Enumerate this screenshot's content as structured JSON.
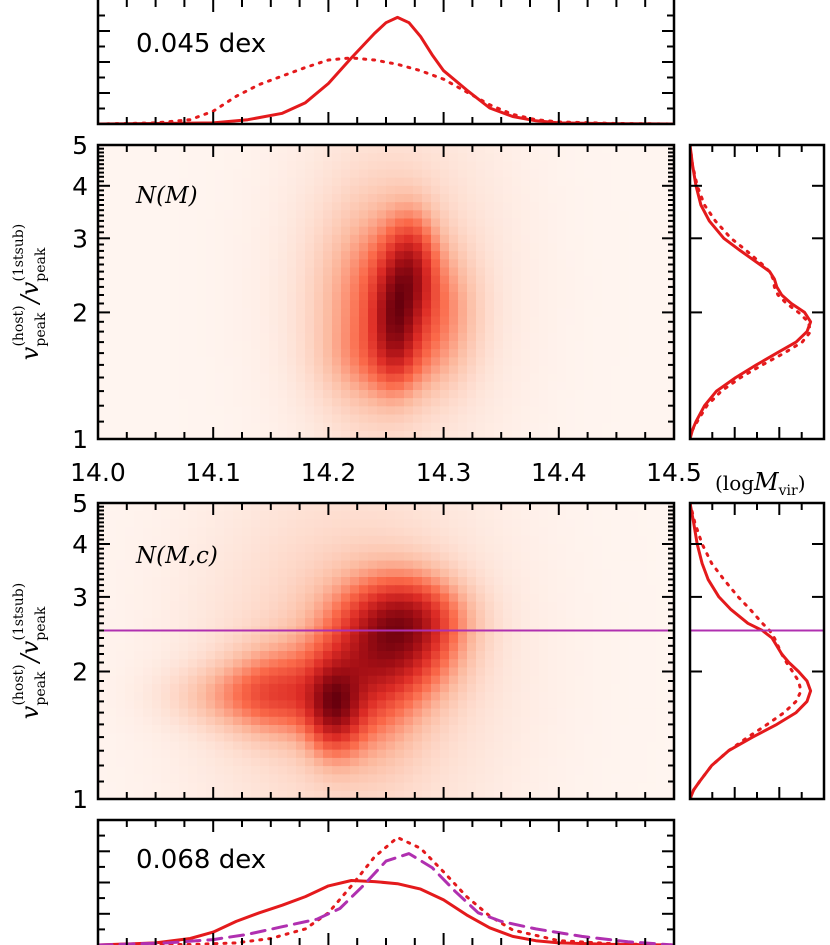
{
  "chart_data": [
    {
      "id": "top_hist",
      "type": "line",
      "annotation": "0.045 dex",
      "x_range": [
        14.0,
        14.5
      ],
      "series": [
        {
          "style": "solid",
          "color": "#e41a1c",
          "x": [
            14.0,
            14.05,
            14.1,
            14.13,
            14.16,
            14.18,
            14.2,
            14.22,
            14.24,
            14.25,
            14.26,
            14.27,
            14.28,
            14.29,
            14.3,
            14.32,
            14.34,
            14.36,
            14.38,
            14.4,
            14.45,
            14.5
          ],
          "y": [
            0.0,
            0.005,
            0.01,
            0.04,
            0.1,
            0.2,
            0.38,
            0.62,
            0.85,
            0.95,
            1.0,
            0.95,
            0.82,
            0.65,
            0.5,
            0.32,
            0.15,
            0.07,
            0.03,
            0.01,
            0.003,
            0.0
          ]
        },
        {
          "style": "dotted",
          "color": "#e41a1c",
          "x": [
            14.0,
            14.05,
            14.08,
            14.1,
            14.12,
            14.14,
            14.16,
            14.18,
            14.2,
            14.22,
            14.24,
            14.26,
            14.28,
            14.3,
            14.32,
            14.34,
            14.36,
            14.38,
            14.4,
            14.45,
            14.5
          ],
          "y": [
            0.0,
            0.01,
            0.04,
            0.12,
            0.26,
            0.37,
            0.45,
            0.53,
            0.6,
            0.62,
            0.6,
            0.56,
            0.5,
            0.42,
            0.3,
            0.18,
            0.09,
            0.04,
            0.02,
            0.005,
            0.0
          ]
        }
      ]
    },
    {
      "id": "main_top",
      "type": "heatmap",
      "annotation": "N(M)",
      "xticks": [
        "14.0",
        "14.1",
        "14.2",
        "14.3",
        "14.4",
        "14.5"
      ],
      "x_range": [
        14.0,
        14.5
      ],
      "yticks": [
        "1",
        "2",
        "3",
        "4",
        "5"
      ],
      "y_range": [
        1,
        5
      ],
      "y_scale": "log",
      "ylabel_main": "v",
      "ylabel_sub1": "peak",
      "ylabel_sup1": "(host)",
      "ylabel_sub2": "peak",
      "ylabel_sup2": "(1stsub)",
      "xunit_prefix": "(log",
      "xunit_sym": "M",
      "xunit_sub": "vir",
      "xunit_suffix": ")",
      "blobs": [
        {
          "x": 14.258,
          "y": 1.9,
          "sx": 0.012,
          "sy": 0.09,
          "w": 1.0
        },
        {
          "x": 14.272,
          "y": 2.55,
          "sx": 0.013,
          "sy": 0.08,
          "w": 0.85
        },
        {
          "x": 14.265,
          "y": 2.2,
          "sx": 0.022,
          "sy": 0.12,
          "w": 0.7
        },
        {
          "x": 14.235,
          "y": 2.05,
          "sx": 0.028,
          "sy": 0.15,
          "w": 0.45
        },
        {
          "x": 14.3,
          "y": 2.0,
          "sx": 0.02,
          "sy": 0.1,
          "w": 0.35
        },
        {
          "x": 14.25,
          "y": 1.55,
          "sx": 0.03,
          "sy": 0.06,
          "w": 0.3
        },
        {
          "x": 14.26,
          "y": 2.3,
          "sx": 0.06,
          "sy": 0.3,
          "w": 0.15
        }
      ]
    },
    {
      "id": "right_top",
      "type": "line",
      "y_range": [
        1,
        5
      ],
      "y_scale": "log",
      "series": [
        {
          "style": "solid",
          "color": "#e41a1c",
          "y": [
            1.0,
            1.05,
            1.1,
            1.2,
            1.3,
            1.4,
            1.5,
            1.6,
            1.7,
            1.8,
            1.9,
            2.0,
            2.1,
            2.2,
            2.3,
            2.4,
            2.5,
            2.6,
            2.8,
            3.0,
            3.3,
            3.6,
            4.0,
            4.5,
            5.0
          ],
          "x": [
            0.0,
            0.02,
            0.05,
            0.12,
            0.22,
            0.38,
            0.55,
            0.72,
            0.88,
            0.97,
            1.0,
            0.95,
            0.84,
            0.76,
            0.72,
            0.7,
            0.66,
            0.58,
            0.42,
            0.28,
            0.16,
            0.09,
            0.05,
            0.02,
            0.0
          ]
        },
        {
          "style": "dotted",
          "color": "#e41a1c",
          "y": [
            1.0,
            1.05,
            1.1,
            1.2,
            1.3,
            1.4,
            1.5,
            1.6,
            1.7,
            1.8,
            1.9,
            2.0,
            2.1,
            2.2,
            2.3,
            2.4,
            2.5,
            2.6,
            2.8,
            3.0,
            3.3,
            3.6,
            4.0,
            4.5,
            5.0
          ],
          "x": [
            0.0,
            0.02,
            0.06,
            0.14,
            0.26,
            0.42,
            0.6,
            0.78,
            0.93,
            1.0,
            0.98,
            0.9,
            0.8,
            0.73,
            0.7,
            0.69,
            0.66,
            0.6,
            0.47,
            0.34,
            0.21,
            0.12,
            0.06,
            0.02,
            0.0
          ]
        }
      ]
    },
    {
      "id": "main_bottom",
      "type": "heatmap",
      "annotation": "N(M,c)",
      "x_range": [
        14.0,
        14.5
      ],
      "yticks": [
        "1",
        "2",
        "3",
        "4",
        "5"
      ],
      "y_range": [
        1,
        5
      ],
      "y_scale": "log",
      "hline": {
        "y": 2.5,
        "color": "#b030b0"
      },
      "blobs": [
        {
          "x": 14.205,
          "y": 1.65,
          "sx": 0.015,
          "sy": 0.07,
          "w": 1.0
        },
        {
          "x": 14.265,
          "y": 2.4,
          "sx": 0.03,
          "sy": 0.09,
          "w": 0.9
        },
        {
          "x": 14.23,
          "y": 2.0,
          "sx": 0.03,
          "sy": 0.12,
          "w": 0.7
        },
        {
          "x": 14.16,
          "y": 1.8,
          "sx": 0.03,
          "sy": 0.07,
          "w": 0.5
        },
        {
          "x": 14.27,
          "y": 2.7,
          "sx": 0.03,
          "sy": 0.06,
          "w": 0.45
        },
        {
          "x": 14.13,
          "y": 1.75,
          "sx": 0.04,
          "sy": 0.05,
          "w": 0.25
        },
        {
          "x": 14.22,
          "y": 2.1,
          "sx": 0.08,
          "sy": 0.3,
          "w": 0.15
        }
      ]
    },
    {
      "id": "right_bottom",
      "type": "line",
      "y_range": [
        1,
        5
      ],
      "y_scale": "log",
      "hline": {
        "y": 2.5,
        "color": "#b030b0"
      },
      "series": [
        {
          "style": "solid",
          "color": "#e41a1c",
          "y": [
            1.0,
            1.05,
            1.1,
            1.2,
            1.3,
            1.4,
            1.5,
            1.6,
            1.7,
            1.8,
            1.9,
            2.0,
            2.1,
            2.2,
            2.3,
            2.4,
            2.5,
            2.6,
            2.8,
            3.0,
            3.3,
            3.6,
            4.0,
            4.5,
            5.0
          ],
          "x": [
            0.0,
            0.03,
            0.08,
            0.18,
            0.32,
            0.52,
            0.72,
            0.88,
            0.97,
            1.0,
            0.97,
            0.9,
            0.82,
            0.76,
            0.72,
            0.68,
            0.6,
            0.48,
            0.34,
            0.24,
            0.15,
            0.1,
            0.06,
            0.03,
            0.0
          ]
        },
        {
          "style": "dotted",
          "color": "#e41a1c",
          "y": [
            1.0,
            1.05,
            1.1,
            1.2,
            1.3,
            1.4,
            1.5,
            1.6,
            1.7,
            1.8,
            1.9,
            2.0,
            2.1,
            2.2,
            2.3,
            2.4,
            2.5,
            2.6,
            2.8,
            3.0,
            3.3,
            3.6,
            4.0,
            4.5,
            5.0
          ],
          "x": [
            0.0,
            0.03,
            0.08,
            0.18,
            0.32,
            0.48,
            0.64,
            0.78,
            0.88,
            0.92,
            0.9,
            0.85,
            0.8,
            0.76,
            0.73,
            0.7,
            0.66,
            0.6,
            0.5,
            0.4,
            0.28,
            0.18,
            0.1,
            0.04,
            0.0
          ]
        }
      ]
    },
    {
      "id": "bottom_hist",
      "type": "line",
      "annotation": "0.068 dex",
      "x_range": [
        14.0,
        14.5
      ],
      "series": [
        {
          "style": "solid",
          "color": "#e41a1c",
          "x": [
            14.0,
            14.05,
            14.08,
            14.1,
            14.12,
            14.14,
            14.16,
            14.18,
            14.2,
            14.22,
            14.24,
            14.26,
            14.28,
            14.3,
            14.32,
            14.34,
            14.36,
            14.38,
            14.4,
            14.45,
            14.5
          ],
          "y": [
            0.0,
            0.02,
            0.06,
            0.12,
            0.22,
            0.3,
            0.37,
            0.45,
            0.55,
            0.6,
            0.59,
            0.57,
            0.52,
            0.42,
            0.28,
            0.16,
            0.08,
            0.04,
            0.02,
            0.005,
            0.0
          ]
        },
        {
          "style": "dotted",
          "color": "#e41a1c",
          "x": [
            14.0,
            14.08,
            14.12,
            14.15,
            14.18,
            14.2,
            14.22,
            14.24,
            14.26,
            14.28,
            14.3,
            14.32,
            14.34,
            14.36,
            14.4,
            14.45,
            14.5
          ],
          "y": [
            0.0,
            0.005,
            0.02,
            0.06,
            0.15,
            0.3,
            0.55,
            0.82,
            1.0,
            0.9,
            0.68,
            0.45,
            0.27,
            0.14,
            0.04,
            0.01,
            0.0
          ]
        },
        {
          "style": "dashed",
          "color": "#b030b0",
          "x": [
            14.0,
            14.06,
            14.1,
            14.13,
            14.16,
            14.19,
            14.21,
            14.23,
            14.25,
            14.27,
            14.29,
            14.31,
            14.33,
            14.35,
            14.38,
            14.42,
            14.46,
            14.5
          ],
          "y": [
            0.0,
            0.02,
            0.05,
            0.1,
            0.17,
            0.24,
            0.34,
            0.55,
            0.78,
            0.85,
            0.72,
            0.5,
            0.3,
            0.22,
            0.15,
            0.08,
            0.03,
            0.0
          ]
        }
      ]
    }
  ]
}
